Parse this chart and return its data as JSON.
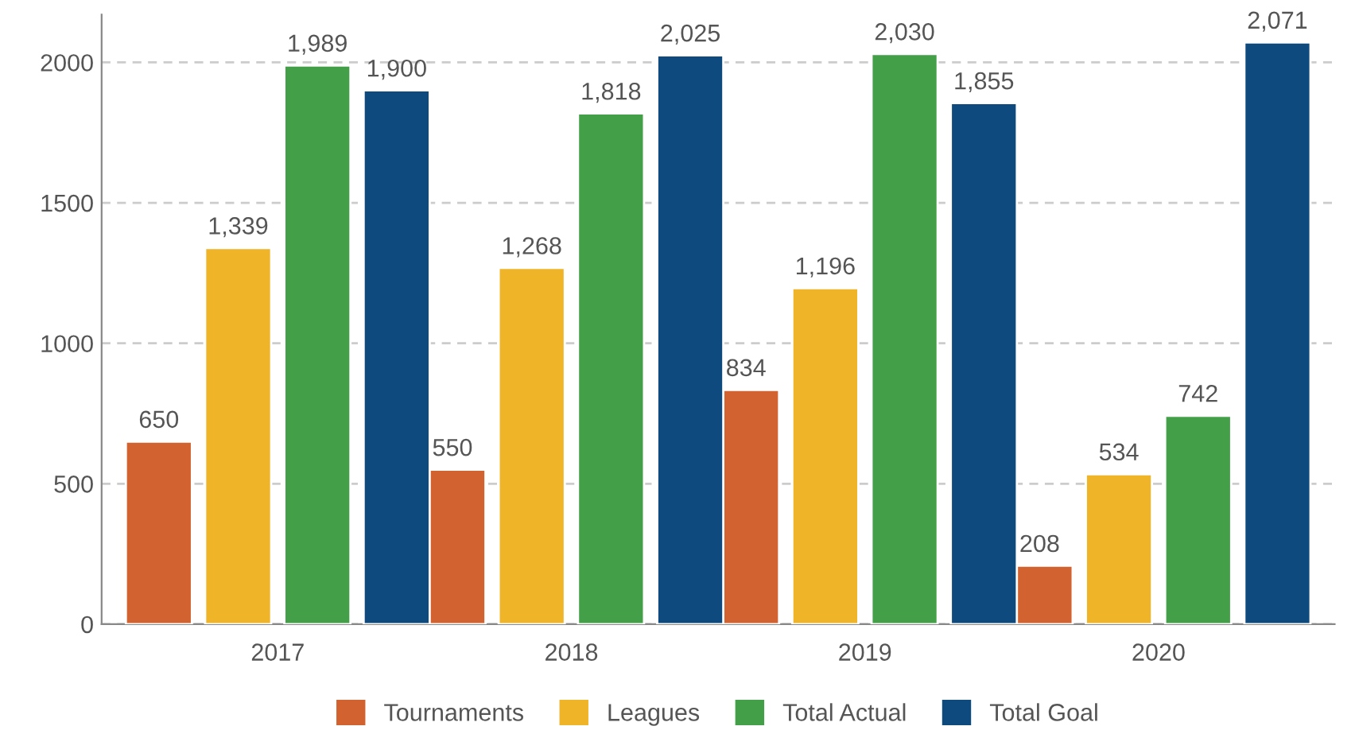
{
  "chart_data": {
    "type": "bar",
    "categories": [
      "2017",
      "2018",
      "2019",
      "2020"
    ],
    "series": [
      {
        "name": "Tournaments",
        "color": "#d2622f",
        "values": [
          650,
          550,
          834,
          208
        ],
        "value_labels": [
          "650",
          "550",
          "834",
          "208"
        ]
      },
      {
        "name": "Leagues",
        "color": "#f0b428",
        "values": [
          1339,
          1268,
          1196,
          534
        ],
        "value_labels": [
          "1,339",
          "1,268",
          "1,196",
          "534"
        ]
      },
      {
        "name": "Total Actual",
        "color": "#44a048",
        "values": [
          1989,
          1818,
          2030,
          742
        ],
        "value_labels": [
          "1,989",
          "1,818",
          "2,030",
          "742"
        ]
      },
      {
        "name": "Total Goal",
        "color": "#0e4a7e",
        "values": [
          1900,
          2025,
          1855,
          2071
        ],
        "value_labels": [
          "1,900",
          "2,025",
          "1,855",
          "2,071"
        ]
      }
    ],
    "ylim": [
      0,
      2170
    ],
    "yticks": [
      0,
      500,
      1000,
      1500,
      2000
    ],
    "grid": "y",
    "legend": "bottom"
  }
}
